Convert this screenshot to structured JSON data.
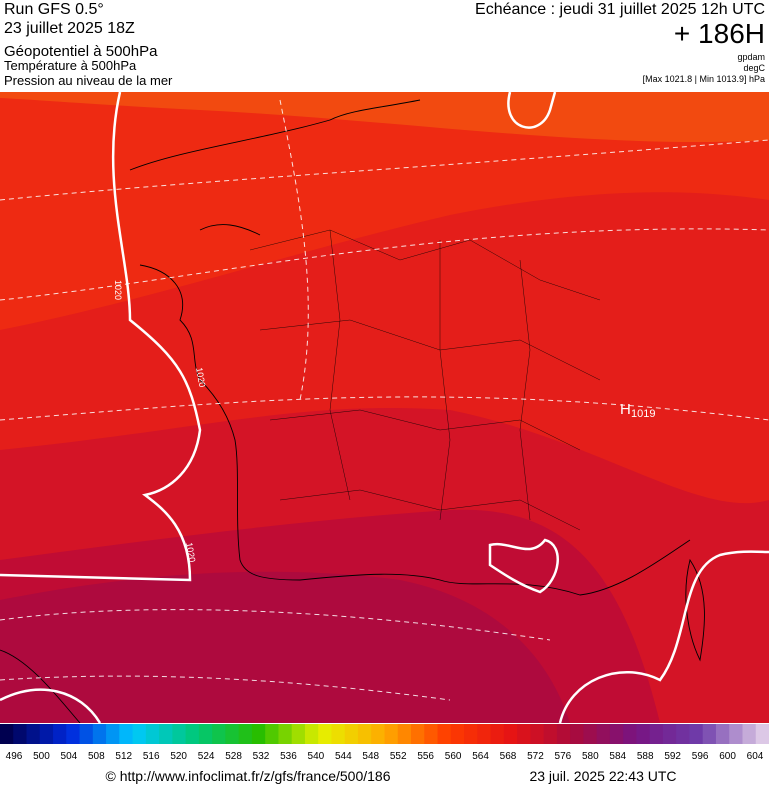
{
  "header": {
    "model": "Run GFS 0.5°",
    "run": "23 juillet 2025 18Z",
    "field": "Géopotentiel à 500hPa",
    "field2": "Température à 500hPa",
    "field3": "Pression au niveau de la mer",
    "valid": "Echéance : jeudi 31 juillet 2025 12h UTC",
    "lead": "+ 186H",
    "units": [
      "gpdam",
      "degC"
    ],
    "range": "[Max 1021.8 | Min 1013.9] hPa"
  },
  "map": {
    "high": {
      "letter": "H",
      "value": "1019"
    },
    "isobar_labels": [
      "1020",
      "1020",
      "1020"
    ]
  },
  "colorbar": {
    "ticks": [
      496,
      500,
      504,
      508,
      512,
      516,
      520,
      524,
      528,
      532,
      536,
      540,
      544,
      548,
      552,
      556,
      560,
      564,
      568,
      572,
      576,
      580,
      584,
      588,
      592,
      596,
      600,
      604
    ]
  },
  "footer": {
    "url": "© http://www.infoclimat.fr/z/gfs/france/500/186",
    "date": "23 juil. 2025 22:43 UTC"
  }
}
